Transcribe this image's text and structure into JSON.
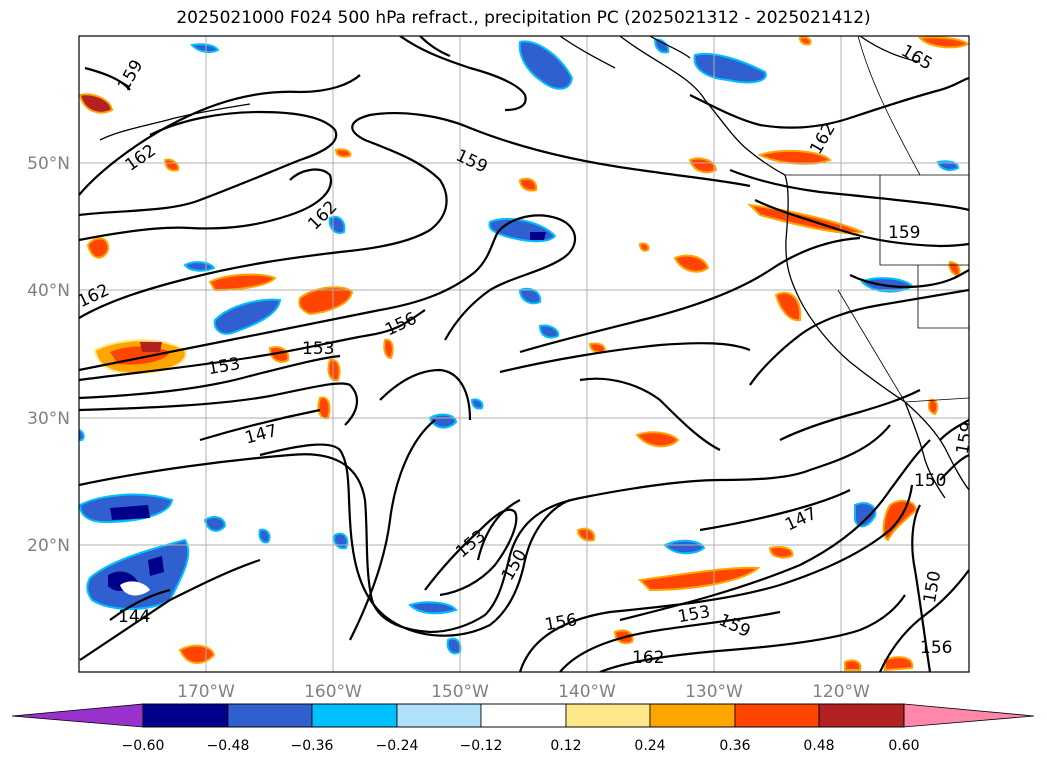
{
  "title": "2025021000 F024 500 hPa refract., precipitation PC (2025021312 - 2025021412)",
  "lat_labels": [
    "50°N",
    "40°N",
    "30°N",
    "20°N"
  ],
  "lon_labels": [
    "170°W",
    "160°W",
    "150°W",
    "140°W",
    "130°W",
    "120°W"
  ],
  "contour_labels": {
    "c1": "159",
    "c2": "162",
    "c3": "162",
    "c4": "162",
    "c5": "159",
    "c6": "165",
    "c7": "162",
    "c8": "159",
    "c9": "156",
    "c10": "153",
    "c11": "153",
    "c12": "147",
    "c13": "153",
    "c14": "150",
    "c15": "147",
    "c16": "156",
    "c17": "153",
    "c18": "159",
    "c19": "162",
    "c20": "144",
    "c21": "150",
    "c22": "156",
    "c23": "150",
    "c24": "159"
  },
  "colorbar": {
    "ticks": [
      "−0.60",
      "−0.48",
      "−0.36",
      "−0.24",
      "−0.12",
      "0.12",
      "0.24",
      "0.36",
      "0.48",
      "0.60"
    ],
    "colors": [
      "#9932cc",
      "#00008b",
      "#3060d0",
      "#00bfff",
      "#b0e0fa",
      "#ffffff",
      "#ffe78c",
      "#ffa500",
      "#ff4500",
      "#b22222",
      "#ff88aa"
    ]
  }
}
